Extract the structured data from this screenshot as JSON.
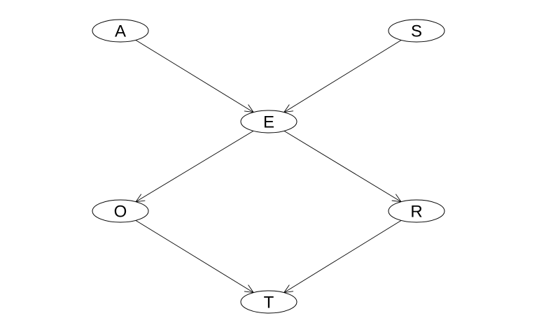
{
  "diagram": {
    "nodes": [
      {
        "id": "A",
        "label": "A"
      },
      {
        "id": "S",
        "label": "S"
      },
      {
        "id": "E",
        "label": "E"
      },
      {
        "id": "O",
        "label": "O"
      },
      {
        "id": "R",
        "label": "R"
      },
      {
        "id": "T",
        "label": "T"
      }
    ],
    "edges": [
      {
        "from": "A",
        "to": "E"
      },
      {
        "from": "S",
        "to": "E"
      },
      {
        "from": "E",
        "to": "O"
      },
      {
        "from": "E",
        "to": "R"
      },
      {
        "from": "O",
        "to": "T"
      },
      {
        "from": "R",
        "to": "T"
      }
    ]
  }
}
